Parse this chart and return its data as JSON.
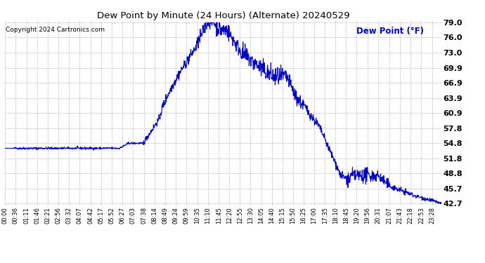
{
  "title": "Dew Point by Minute (24 Hours) (Alternate) 20240529",
  "copyright": "Copyright 2024 Cartronics.com",
  "legend_label": "Dew Point (°F)",
  "line_color": "#0000CC",
  "legend_color": "#0000CC",
  "background_color": "#ffffff",
  "grid_color": "#bbbbbb",
  "title_color": "#000000",
  "ymin": 42.7,
  "ymax": 79.0,
  "yticks": [
    42.7,
    45.7,
    48.8,
    51.8,
    54.8,
    57.8,
    60.9,
    63.9,
    66.9,
    69.9,
    73.0,
    76.0,
    79.0
  ],
  "xtick_labels": [
    "00:00",
    "00:36",
    "01:11",
    "01:46",
    "02:21",
    "02:56",
    "03:32",
    "04:07",
    "04:42",
    "05:17",
    "05:52",
    "06:27",
    "07:03",
    "07:38",
    "08:14",
    "08:49",
    "09:24",
    "09:59",
    "10:35",
    "11:10",
    "11:45",
    "12:20",
    "12:55",
    "13:30",
    "14:05",
    "14:40",
    "15:15",
    "15:50",
    "16:25",
    "17:00",
    "17:35",
    "18:10",
    "18:45",
    "19:20",
    "19:56",
    "20:31",
    "21:07",
    "21:43",
    "22:18",
    "22:53",
    "23:28"
  ],
  "data_seed": 42
}
